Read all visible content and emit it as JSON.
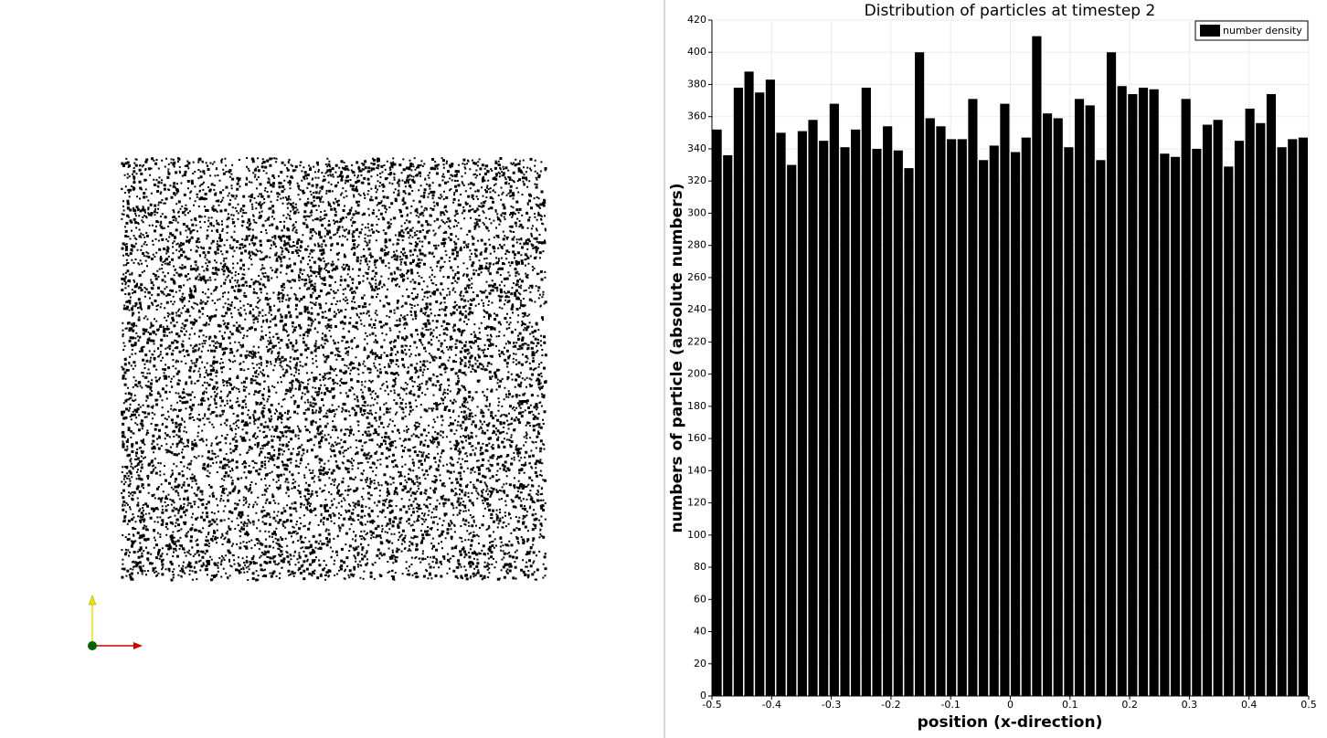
{
  "chart_data": {
    "type": "histogram",
    "title": "Distribution of particles at timestep 2",
    "xlabel": "position (x-direction)",
    "ylabel": "numbers of particle (absolute numbers)",
    "bins": [
      -0.5,
      -0.4821,
      -0.4643,
      -0.4464,
      -0.4286,
      -0.4107,
      -0.3929,
      -0.375,
      -0.3571,
      -0.3393,
      -0.3214,
      -0.3036,
      -0.2857,
      -0.2679,
      -0.25,
      -0.2321,
      -0.2143,
      -0.1964,
      -0.1786,
      -0.1607,
      -0.1429,
      -0.125,
      -0.1071,
      -0.0893,
      -0.0714,
      -0.0536,
      -0.0357,
      -0.0179,
      0,
      0.0179,
      0.0357,
      0.0536,
      0.0714,
      0.0893,
      0.1071,
      0.125,
      0.1429,
      0.1607,
      0.1786,
      0.1964,
      0.2143,
      0.2321,
      0.25,
      0.2679,
      0.2857,
      0.3036,
      0.3214,
      0.3393,
      0.3571,
      0.375,
      0.3929,
      0.4107,
      0.4286,
      0.4464,
      0.4643,
      0.4821,
      0.5
    ],
    "series": [
      {
        "name": "number density",
        "color": "#000000",
        "values": [
          352,
          336,
          378,
          388,
          375,
          383,
          350,
          330,
          351,
          358,
          345,
          368,
          341,
          352,
          378,
          340,
          354,
          339,
          328,
          400,
          359,
          354,
          346,
          346,
          371,
          333,
          342,
          368,
          338,
          347,
          410,
          362,
          359,
          341,
          371,
          367,
          333,
          400,
          379,
          374,
          378,
          377,
          337,
          335,
          371,
          340,
          355,
          358,
          329,
          345,
          365,
          356,
          374,
          341,
          346,
          347
        ]
      }
    ],
    "xlim": [
      -0.5,
      0.5
    ],
    "ylim": [
      0,
      420
    ],
    "xticks": [
      -0.5,
      -0.4,
      -0.3,
      -0.2,
      -0.1,
      0,
      0.1,
      0.2,
      0.3,
      0.4,
      0.5
    ],
    "yticks": [
      0,
      20,
      40,
      60,
      80,
      100,
      120,
      140,
      160,
      180,
      200,
      220,
      240,
      260,
      280,
      300,
      320,
      340,
      360,
      380,
      400,
      420
    ],
    "grid": true,
    "legend": "upper right"
  }
}
